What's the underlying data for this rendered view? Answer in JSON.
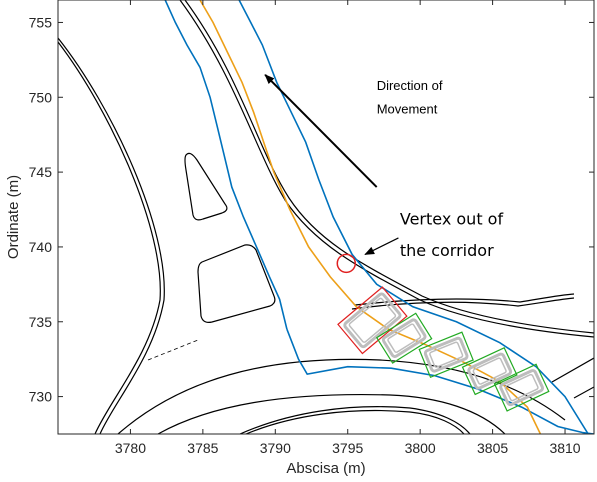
{
  "chart_data": {
    "type": "scatter",
    "title": "",
    "xlabel": "Abscisa (m)",
    "ylabel": "Ordinate (m)",
    "xlim": [
      3775,
      3812
    ],
    "ylim": [
      727.5,
      756.5
    ],
    "xticks": [
      3780,
      3785,
      3790,
      3795,
      3800,
      3805,
      3810
    ],
    "yticks": [
      730,
      735,
      740,
      745,
      750,
      755
    ],
    "grid": false,
    "legend": "none",
    "colors": {
      "road_edge": "#000000",
      "corridor": "#0072BD",
      "reference_path": "#EDA019",
      "vehicle_ok": "#22AA22",
      "vehicle_violation": "#E02020",
      "vehicle_shadow": "#BDBDBD"
    },
    "series": [
      {
        "role": "corridor-left",
        "x": [
          3782.4,
          3783.1,
          3783.9,
          3784.8,
          3785.5,
          3786.0,
          3786.5,
          3787.0,
          3787.8,
          3788.7,
          3789.6,
          3790.3,
          3790.8
        ],
        "y": [
          756.5,
          755.0,
          753.5,
          752.0,
          750.0,
          748.0,
          746.0,
          744.0,
          742.0,
          740.0,
          738.0,
          736.5,
          734.5
        ]
      },
      {
        "role": "corridor-lower",
        "x": [
          3790.8,
          3791.6,
          3792.2,
          3795.0,
          3798.0,
          3801.0,
          3804.0,
          3807.0,
          3809.5,
          3811.2,
          3812.0
        ],
        "y": [
          734.5,
          732.5,
          731.5,
          732.0,
          731.9,
          731.4,
          730.5,
          729.3,
          728.0,
          727.6,
          727.5
        ]
      },
      {
        "role": "corridor-right",
        "x": [
          3787.5,
          3788.3,
          3789.1,
          3790.1,
          3791.1,
          3792.1,
          3793.0,
          3794.0,
          3795.3,
          3797.0,
          3799.5,
          3802.5,
          3805.5,
          3808.0,
          3810.0,
          3811.6
        ],
        "y": [
          756.5,
          755.0,
          753.5,
          751.0,
          749.0,
          747.0,
          744.5,
          742.0,
          739.5,
          737.5,
          736.0,
          735.0,
          733.6,
          732.0,
          730.0,
          727.5
        ]
      },
      {
        "role": "reference-path",
        "x": [
          3784.8,
          3785.7,
          3786.7,
          3787.7,
          3788.5,
          3789.2,
          3789.9,
          3791.0,
          3792.3,
          3793.8,
          3795.6,
          3797.8,
          3800.3,
          3803.0,
          3805.5,
          3807.4,
          3808.3
        ],
        "y": [
          756.5,
          755.0,
          753.0,
          751.0,
          749.0,
          747.0,
          745.0,
          742.5,
          740.0,
          738.0,
          736.0,
          734.5,
          733.5,
          732.3,
          731.0,
          729.3,
          727.5
        ]
      },
      {
        "role": "vehicle-footprints",
        "x": [
          3796.7,
          3798.9,
          3801.8,
          3804.8,
          3807.0
        ],
        "y": [
          735.1,
          733.9,
          732.8,
          731.7,
          730.6
        ],
        "angle_deg": [
          -40,
          -32,
          -22,
          -25,
          -25
        ]
      }
    ],
    "annotations": [
      {
        "text": "Direction of",
        "x": 3797.0,
        "y": 750.5
      },
      {
        "text": "Movement",
        "x": 3797.0,
        "y": 748.9
      },
      {
        "text": "Vertex out of",
        "x": 3798.6,
        "y": 741.5
      },
      {
        "text": "the corridor",
        "x": 3798.6,
        "y": 739.4
      }
    ],
    "violation_marker": {
      "x": 3794.9,
      "y": 738.9
    },
    "direction_arrow": {
      "from": [
        3797.0,
        744.0
      ],
      "to": [
        3789.3,
        751.5
      ]
    },
    "callout_arrow": {
      "from": [
        3798.5,
        740.6
      ],
      "to": [
        3796.2,
        739.5
      ]
    }
  }
}
